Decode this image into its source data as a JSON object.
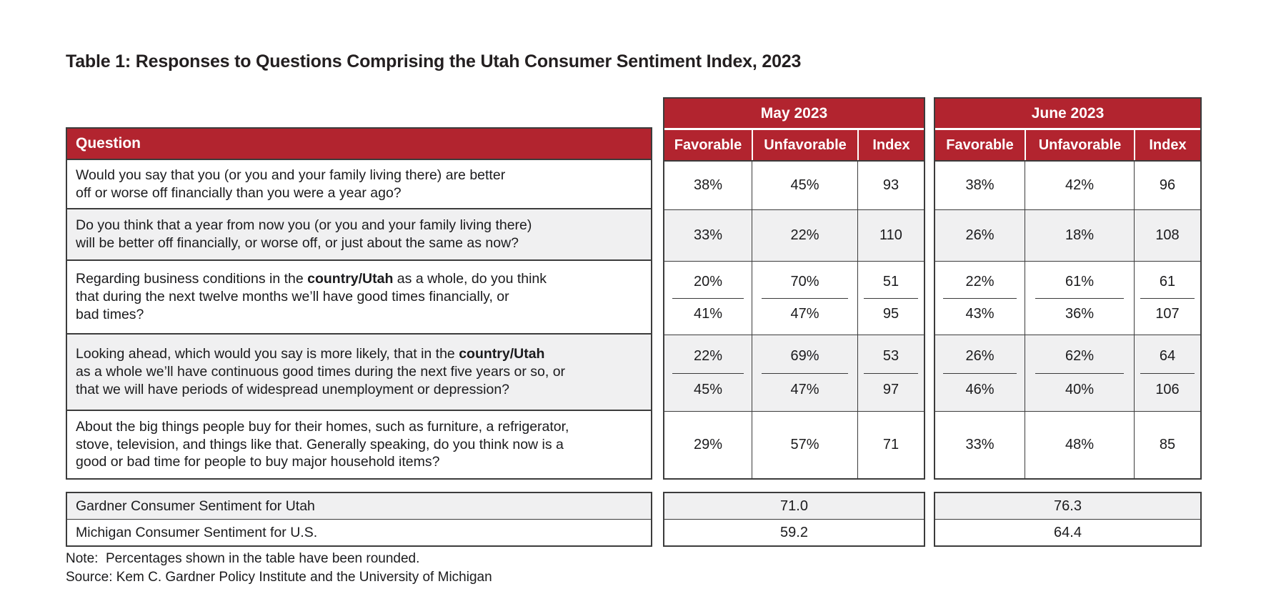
{
  "title": "Table 1: Responses to Questions Comprising the Utah Consumer Sentiment Index, 2023",
  "colors": {
    "header_red": "#b2242f",
    "alt_row_gray": "#f0f0f1",
    "border_dark": "#3c3c3c"
  },
  "table": {
    "question_header": "Question",
    "groups": [
      {
        "label": "May 2023"
      },
      {
        "label": "June 2023"
      }
    ],
    "columns": [
      "Favorable",
      "Unfavorable",
      "Index"
    ],
    "rows": [
      {
        "question": "Would you say that you (or you and your family living there) are better\noff or worse off financially than you were a year ago?",
        "may": {
          "favorable": "38%",
          "unfavorable": "45%",
          "index": "93"
        },
        "june": {
          "favorable": "38%",
          "unfavorable": "42%",
          "index": "96"
        }
      },
      {
        "question": "Do you think that a year from now you (or you and your family living there)\nwill be better off financially, or worse off, or just about the same as now?",
        "may": {
          "favorable": "33%",
          "unfavorable": "22%",
          "index": "110"
        },
        "june": {
          "favorable": "26%",
          "unfavorable": "18%",
          "index": "108"
        }
      },
      {
        "question_pre": "Regarding business conditions in the ",
        "question_bold": "country/Utah",
        "question_post": " as a whole, do you think\nthat during the next twelve months we’ll have good times financially, or\nbad times?",
        "may": {
          "favorable": {
            "top": "20%",
            "bottom": "41%"
          },
          "unfavorable": {
            "top": "70%",
            "bottom": "47%"
          },
          "index": {
            "top": "51",
            "bottom": "95"
          }
        },
        "june": {
          "favorable": {
            "top": "22%",
            "bottom": "43%"
          },
          "unfavorable": {
            "top": "61%",
            "bottom": "36%"
          },
          "index": {
            "top": "61",
            "bottom": "107"
          }
        }
      },
      {
        "question_pre": "Looking ahead, which would you say is more likely, that in the ",
        "question_bold": "country/Utah",
        "question_post": "\nas a whole we’ll have continuous good times during the next five years or so, or\nthat we will have periods of widespread unemployment or depression?",
        "may": {
          "favorable": {
            "top": "22%",
            "bottom": "45%"
          },
          "unfavorable": {
            "top": "69%",
            "bottom": "47%"
          },
          "index": {
            "top": "53",
            "bottom": "97"
          }
        },
        "june": {
          "favorable": {
            "top": "26%",
            "bottom": "46%"
          },
          "unfavorable": {
            "top": "62%",
            "bottom": "40%"
          },
          "index": {
            "top": "64",
            "bottom": "106"
          }
        }
      },
      {
        "question": "About the big things people buy for their homes, such as furniture, a refrigerator,\nstove, television, and things like that. Generally speaking, do you think now is a\ngood or bad time for people to buy major household items?",
        "may": {
          "favorable": "29%",
          "unfavorable": "57%",
          "index": "71"
        },
        "june": {
          "favorable": "33%",
          "unfavorable": "48%",
          "index": "85"
        }
      }
    ],
    "summary": [
      {
        "label": "Gardner Consumer Sentiment for Utah",
        "may": "71.0",
        "june": "76.3"
      },
      {
        "label": "Michigan Consumer Sentiment for U.S.",
        "may": "59.2",
        "june": "64.4"
      }
    ]
  },
  "footnotes": {
    "note": "Note:  Percentages shown in the table have been rounded.",
    "source": "Source: Kem C. Gardner Policy Institute and the University of Michigan"
  }
}
